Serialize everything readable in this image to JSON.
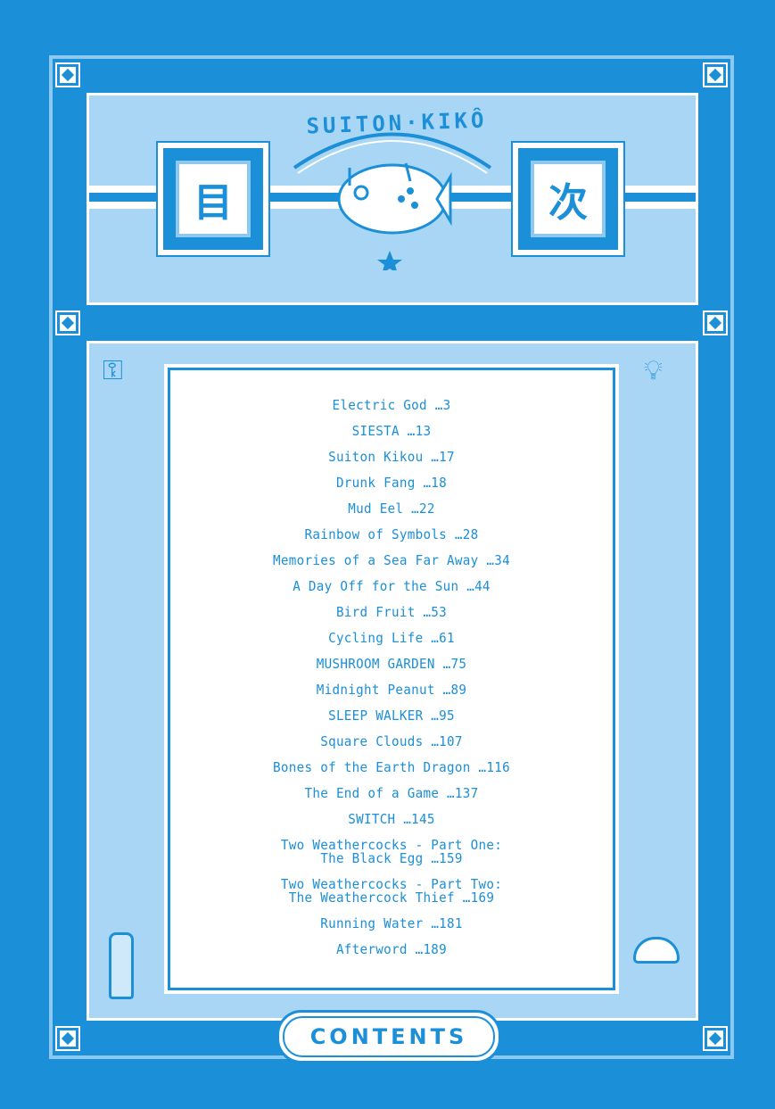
{
  "header": {
    "series_title": "SUITON·KIKÔ",
    "kanji_left": "目",
    "kanji_right": "次"
  },
  "entries": [
    {
      "line1": "Electric God …3"
    },
    {
      "line1": "SIESTA …13"
    },
    {
      "line1": "Suiton Kikou …17"
    },
    {
      "line1": "Drunk Fang …18"
    },
    {
      "line1": "Mud Eel …22"
    },
    {
      "line1": "Rainbow of Symbols …28"
    },
    {
      "line1": "Memories of a Sea Far Away …34"
    },
    {
      "line1": "A Day Off for the Sun …44"
    },
    {
      "line1": "Bird Fruit …53"
    },
    {
      "line1": "Cycling Life …61"
    },
    {
      "line1": "MUSHROOM GARDEN …75"
    },
    {
      "line1": "Midnight Peanut …89"
    },
    {
      "line1": "SLEEP WALKER …95"
    },
    {
      "line1": "Square Clouds …107"
    },
    {
      "line1": "Bones of the Earth Dragon …116"
    },
    {
      "line1": "The End of a Game …137"
    },
    {
      "line1": "SWITCH …145"
    },
    {
      "line1": "Two Weathercocks - Part One:",
      "line2": "The Black Egg …159"
    },
    {
      "line1": "Two Weathercocks - Part Two:",
      "line2": "The Weathercock Thief …169"
    },
    {
      "line1": "Running Water …181"
    },
    {
      "line1": "Afterword …189"
    }
  ],
  "footer": {
    "label": "CONTENTS"
  },
  "colors": {
    "primary": "#1b8fd8",
    "light": "#a9d6f5",
    "white": "#ffffff"
  }
}
